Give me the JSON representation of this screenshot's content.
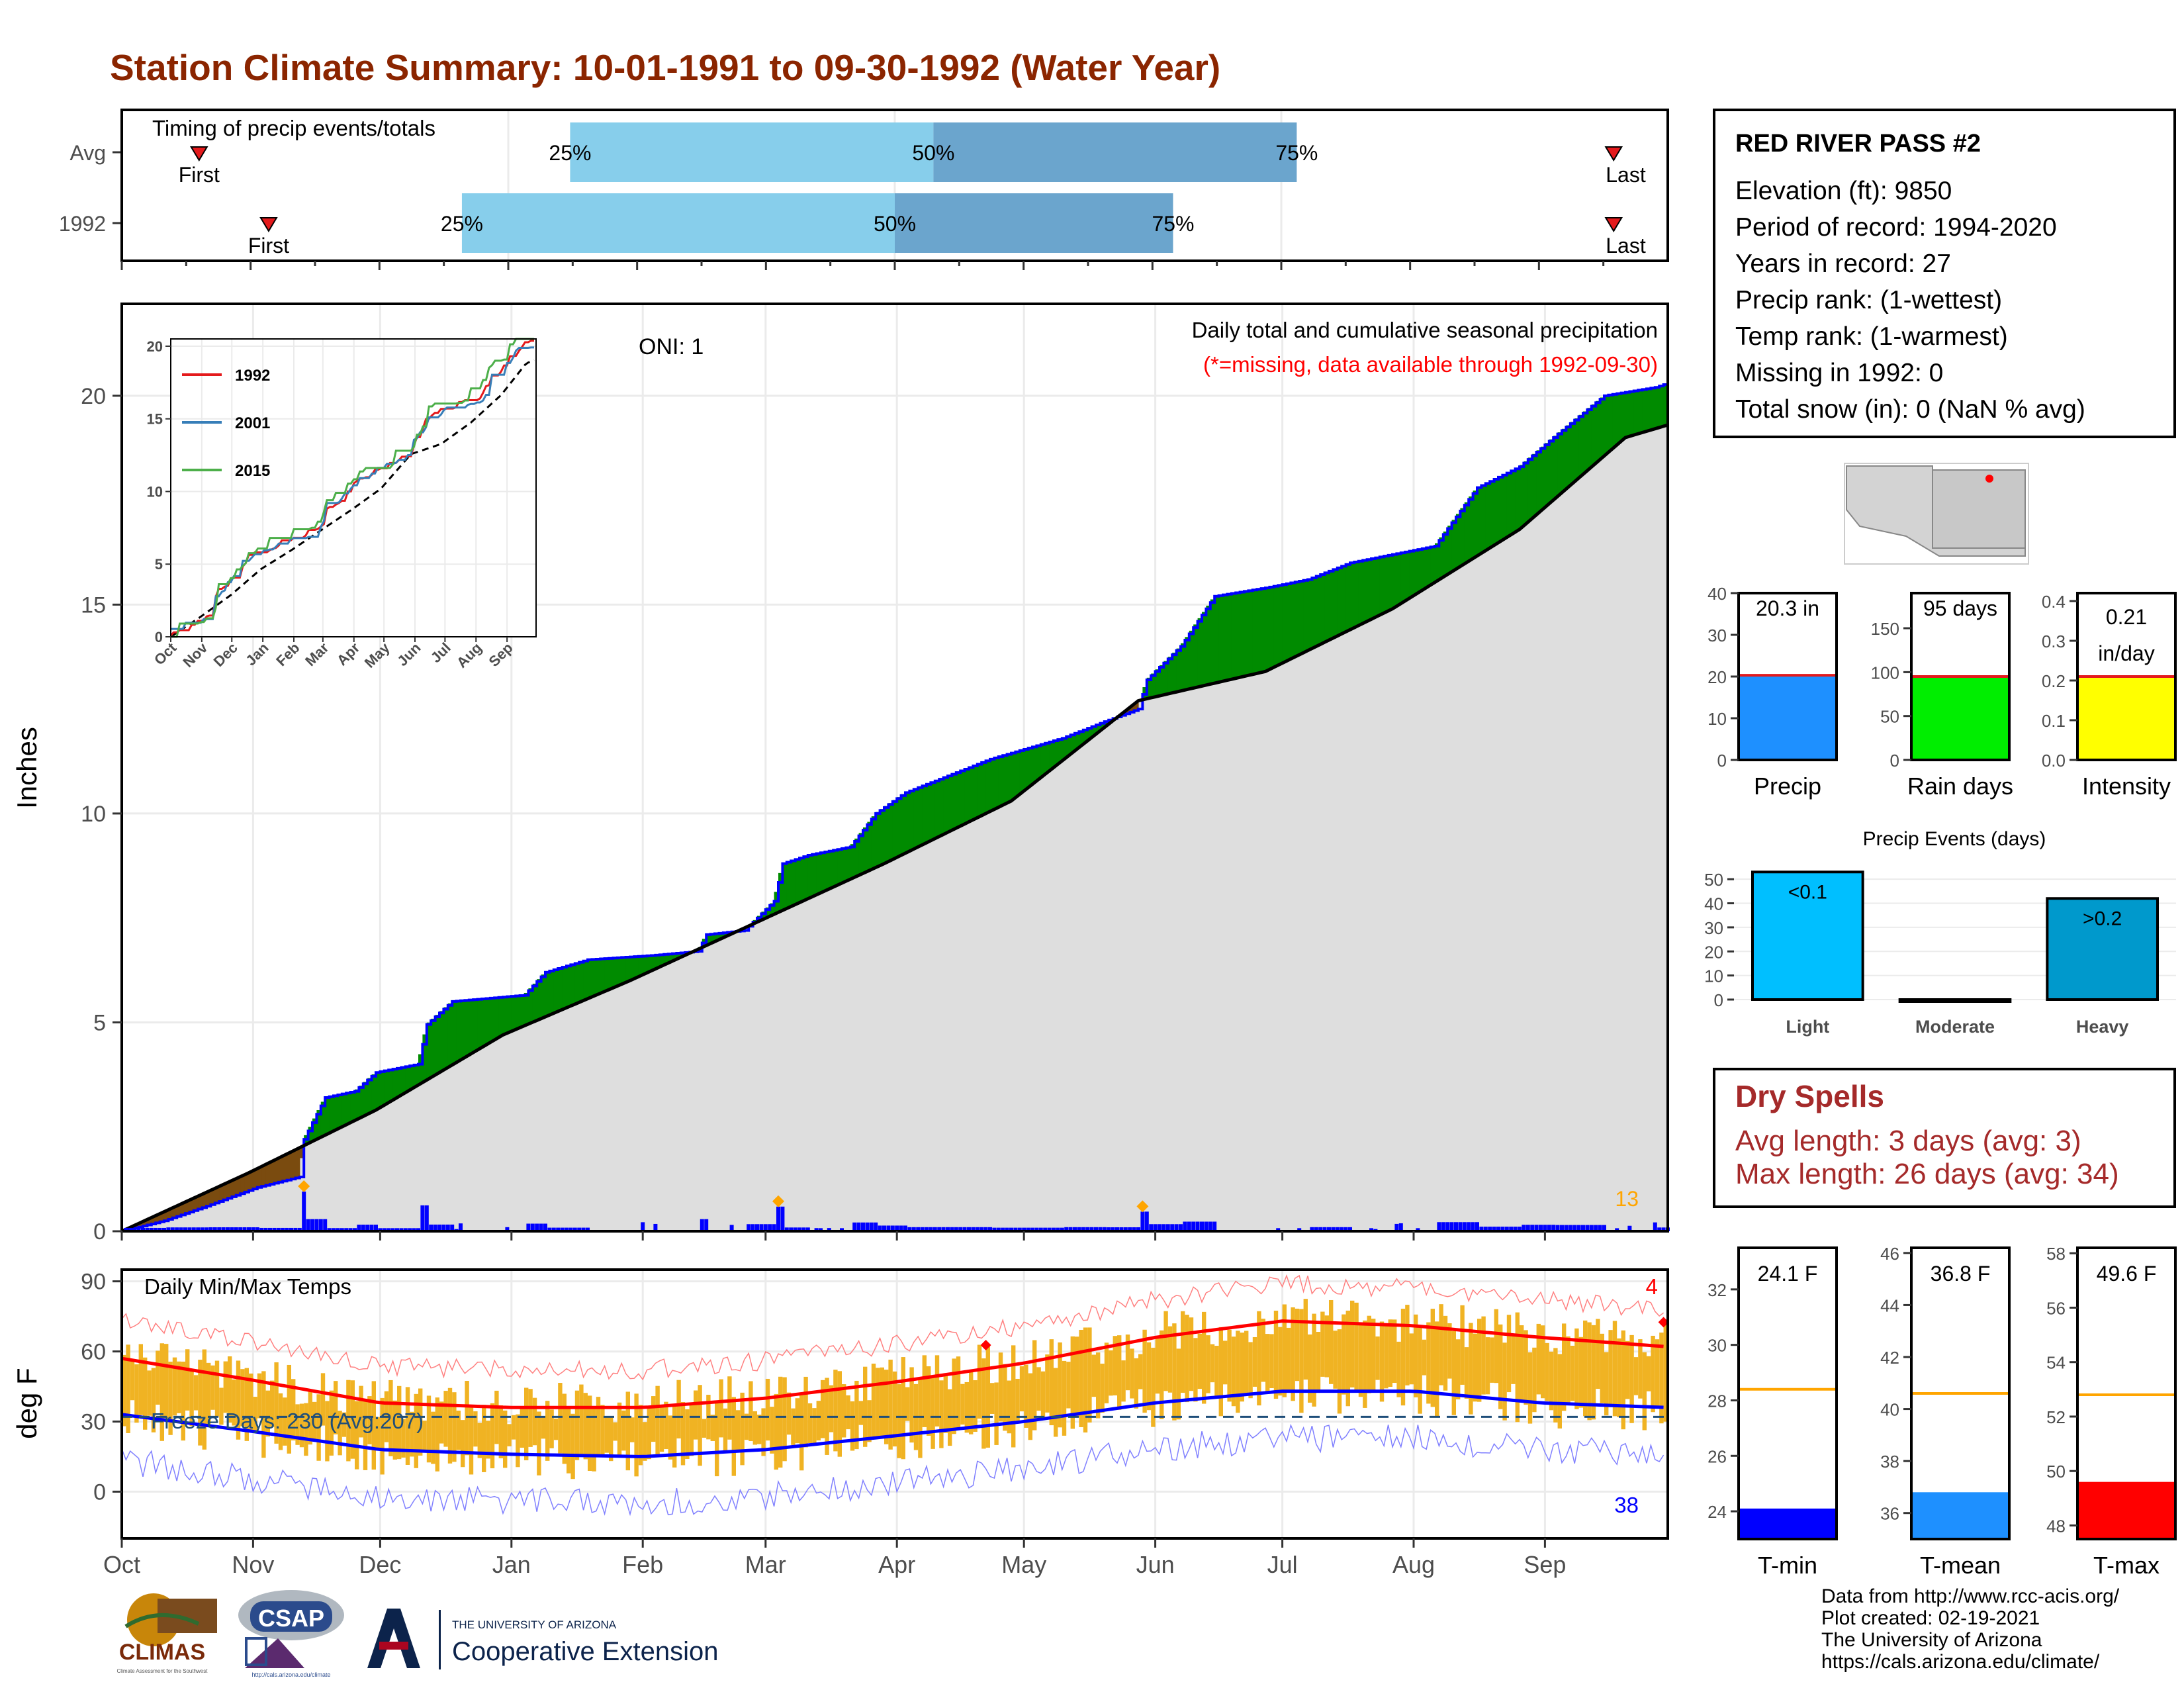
{
  "title": "Station Climate Summary: 10-01-1991 to 09-30-1992 (Water Year)",
  "timing_panel": {
    "label": "Timing of precip events/totals",
    "rows": [
      {
        "label": "Avg",
        "first": 0.05,
        "p25": 0.29,
        "p50": 0.525,
        "p75": 0.76,
        "last": 0.965
      },
      {
        "label": "1992",
        "first": 0.095,
        "p25": 0.22,
        "p50": 0.5,
        "p75": 0.68,
        "last": 0.965
      }
    ],
    "pct_labels": [
      "25%",
      "50%",
      "75%"
    ],
    "first_label": "First",
    "last_label": "Last"
  },
  "main_panel": {
    "ylabel": "Inches",
    "yticks": [
      0,
      5,
      10,
      15,
      20
    ],
    "oni": "ONI: 1",
    "caption": "Daily total and cumulative seasonal precipitation",
    "missing_note": "(*=missing, data available through 1992-09-30)",
    "event_count": "13"
  },
  "inset": {
    "months": [
      "Oct",
      "Nov",
      "Dec",
      "Jan",
      "Feb",
      "Mar",
      "Apr",
      "May",
      "Jun",
      "Jul",
      "Aug",
      "Sep"
    ],
    "yticks": [
      0,
      5,
      10,
      15,
      20
    ],
    "legend": [
      {
        "name": "1992",
        "color": "#e41a1c"
      },
      {
        "name": "2001",
        "color": "#377eb8"
      },
      {
        "name": "2015",
        "color": "#4daf4a"
      }
    ]
  },
  "temp_panel": {
    "ylabel": "deg F",
    "title": "Daily Min/Max Temps",
    "freeze_text": "Freeze Days: 230 (Avg:207)",
    "yticks": [
      0,
      30,
      60,
      90
    ],
    "hot_count": "4",
    "cold_count": "38"
  },
  "months": [
    "Oct",
    "Nov",
    "Dec",
    "Jan",
    "Feb",
    "Mar",
    "Apr",
    "May",
    "Jun",
    "Jul",
    "Aug",
    "Sep"
  ],
  "station": {
    "name": "RED RIVER PASS #2",
    "lines": [
      "Elevation (ft): 9850",
      "Period of record: 1994-2020",
      "Years in record: 27",
      "Precip rank:  (1-wettest)",
      "Temp rank:  (1-warmest)",
      "Missing in 1992: 0",
      "Total snow (in): 0 (NaN % avg)"
    ]
  },
  "gauges_precip": [
    {
      "label": "Precip",
      "value_text": "20.3 in",
      "value": 20.3,
      "avg": 20.3,
      "ymax": 40,
      "yticks": [
        0,
        10,
        20,
        30,
        40
      ],
      "color": "#1e90ff",
      "avg_color": "#e41a1c"
    },
    {
      "label": "Rain days",
      "value_text": "95 days",
      "value": 95,
      "avg": 95,
      "ymax": 190,
      "yticks": [
        0,
        50,
        100,
        150
      ],
      "color": "#00ee00",
      "avg_color": "#e41a1c"
    },
    {
      "label": "Intensity",
      "value_text": "0.21\nin/day",
      "value": 0.21,
      "avg": 0.21,
      "ymax": 0.42,
      "yticks": [
        0.0,
        0.1,
        0.2,
        0.3,
        0.4
      ],
      "color": "#ffff00",
      "avg_color": "#e41a1c"
    }
  ],
  "precip_events": {
    "title": "Precip Events (days)",
    "categories": [
      "Light",
      "Moderate",
      "Heavy"
    ],
    "values": [
      53,
      0,
      42
    ],
    "bar_labels": [
      "<0.1",
      "",
      ">0.2"
    ],
    "yticks": [
      0,
      10,
      20,
      30,
      40,
      50
    ],
    "ymax": 55,
    "colors": [
      "#00bfff",
      "#00bfff",
      "#0099cc"
    ]
  },
  "dry_spells": {
    "title": "Dry Spells",
    "avg_line": "Avg length: 3 days (avg: 3)",
    "max_line": "Max length: 26 days (avg: 34)"
  },
  "gauges_temp": [
    {
      "label": "T-min",
      "value_text": "24.1 F",
      "value": 24.1,
      "avg": 28.4,
      "ymin": 23.0,
      "ymax": 33.5,
      "yticks": [
        24,
        26,
        28,
        30,
        32
      ],
      "color": "#0000ff",
      "avg_color": "#ffa500"
    },
    {
      "label": "T-mean",
      "value_text": "36.8 F",
      "value": 36.8,
      "avg": 40.6,
      "ymin": 35.0,
      "ymax": 46.2,
      "yticks": [
        36,
        38,
        40,
        42,
        44,
        46
      ],
      "color": "#1e90ff",
      "avg_color": "#ffa500"
    },
    {
      "label": "T-max",
      "value_text": "49.6 F",
      "value": 49.6,
      "avg": 52.8,
      "ymin": 47.5,
      "ymax": 58.2,
      "yticks": [
        48,
        50,
        52,
        54,
        56,
        58
      ],
      "color": "#ff0000",
      "avg_color": "#ffa500"
    }
  ],
  "footer": {
    "lines": [
      "Data from http://www.rcc-acis.org/",
      "Plot created: 02-19-2021",
      "The University of Arizona",
      "https://cals.arizona.edu/climate/"
    ]
  },
  "logos": {
    "climas": "CLIMAS",
    "climas_sub": "Climate Assessment for the Southwest",
    "csap": "CSAP",
    "csap_url": "http://cals.arizona.edu/climate",
    "ua_small": "THE UNIVERSITY OF ARIZONA",
    "ua_big": "Cooperative Extension"
  },
  "chart_data": [
    {
      "type": "area",
      "title": "Daily total and cumulative seasonal precipitation",
      "ylabel": "Inches",
      "ylim": [
        0,
        22
      ],
      "x_range": [
        "1991-10-01",
        "1992-09-30"
      ],
      "series": [
        {
          "name": "1992",
          "points": [
            [
              0,
              0
            ],
            [
              10,
              0.25
            ],
            [
              20,
              0.6
            ],
            [
              32,
              1.05
            ],
            [
              42,
              1.3
            ],
            [
              43,
              2.2
            ],
            [
              48,
              3.2
            ],
            [
              55,
              3.35
            ],
            [
              60,
              3.8
            ],
            [
              70,
              4.0
            ],
            [
              72,
              4.95
            ],
            [
              78,
              5.5
            ],
            [
              95,
              5.65
            ],
            [
              100,
              6.2
            ],
            [
              110,
              6.5
            ],
            [
              125,
              6.6
            ],
            [
              136,
              6.7
            ],
            [
              138,
              7.1
            ],
            [
              147,
              7.2
            ],
            [
              154,
              7.9
            ],
            [
              156,
              8.8
            ],
            [
              162,
              9.0
            ],
            [
              172,
              9.2
            ],
            [
              178,
              10.0
            ],
            [
              185,
              10.5
            ],
            [
              195,
              10.9
            ],
            [
              205,
              11.3
            ],
            [
              222,
              11.8
            ],
            [
              232,
              12.2
            ],
            [
              240,
              12.5
            ],
            [
              242,
              13.2
            ],
            [
              250,
              14.0
            ],
            [
              258,
              15.2
            ],
            [
              270,
              15.4
            ],
            [
              280,
              15.6
            ],
            [
              290,
              16.0
            ],
            [
              300,
              16.2
            ],
            [
              310,
              16.4
            ],
            [
              320,
              17.8
            ],
            [
              330,
              18.3
            ],
            [
              338,
              19.0
            ],
            [
              350,
              20.0
            ],
            [
              362,
              20.2
            ],
            [
              365,
              20.3
            ]
          ]
        },
        {
          "name": "Avg",
          "points": [
            [
              0,
              0
            ],
            [
              30,
              1.4
            ],
            [
              60,
              2.9
            ],
            [
              90,
              4.7
            ],
            [
              120,
              6.0
            ],
            [
              150,
              7.4
            ],
            [
              180,
              8.8
            ],
            [
              210,
              10.3
            ],
            [
              240,
              12.7
            ],
            [
              270,
              13.4
            ],
            [
              300,
              14.9
            ],
            [
              330,
              16.8
            ],
            [
              355,
              19.0
            ],
            [
              365,
              19.3
            ]
          ]
        }
      ]
    },
    {
      "type": "line",
      "title": "Daily Min/Max Temps",
      "ylabel": "deg F",
      "ylim": [
        -20,
        95
      ],
      "x": [
        0,
        30,
        61,
        92,
        123,
        152,
        183,
        213,
        244,
        274,
        305,
        335,
        365
      ],
      "series": [
        {
          "name": "Avg max",
          "values": [
            57,
            48,
            38,
            36,
            36,
            40,
            47,
            55,
            66,
            73,
            71,
            66,
            62
          ]
        },
        {
          "name": "Avg min",
          "values": [
            33,
            26,
            18,
            16,
            15,
            18,
            24,
            30,
            38,
            43,
            43,
            38,
            36
          ]
        },
        {
          "name": "Freeze threshold",
          "values": [
            32,
            32,
            32,
            32,
            32,
            32,
            32,
            32,
            32,
            32,
            32,
            32,
            32
          ]
        }
      ]
    },
    {
      "type": "bar",
      "title": "Precip Events (days)",
      "categories": [
        "Light",
        "Moderate",
        "Heavy"
      ],
      "values": [
        53,
        0,
        42
      ]
    }
  ]
}
